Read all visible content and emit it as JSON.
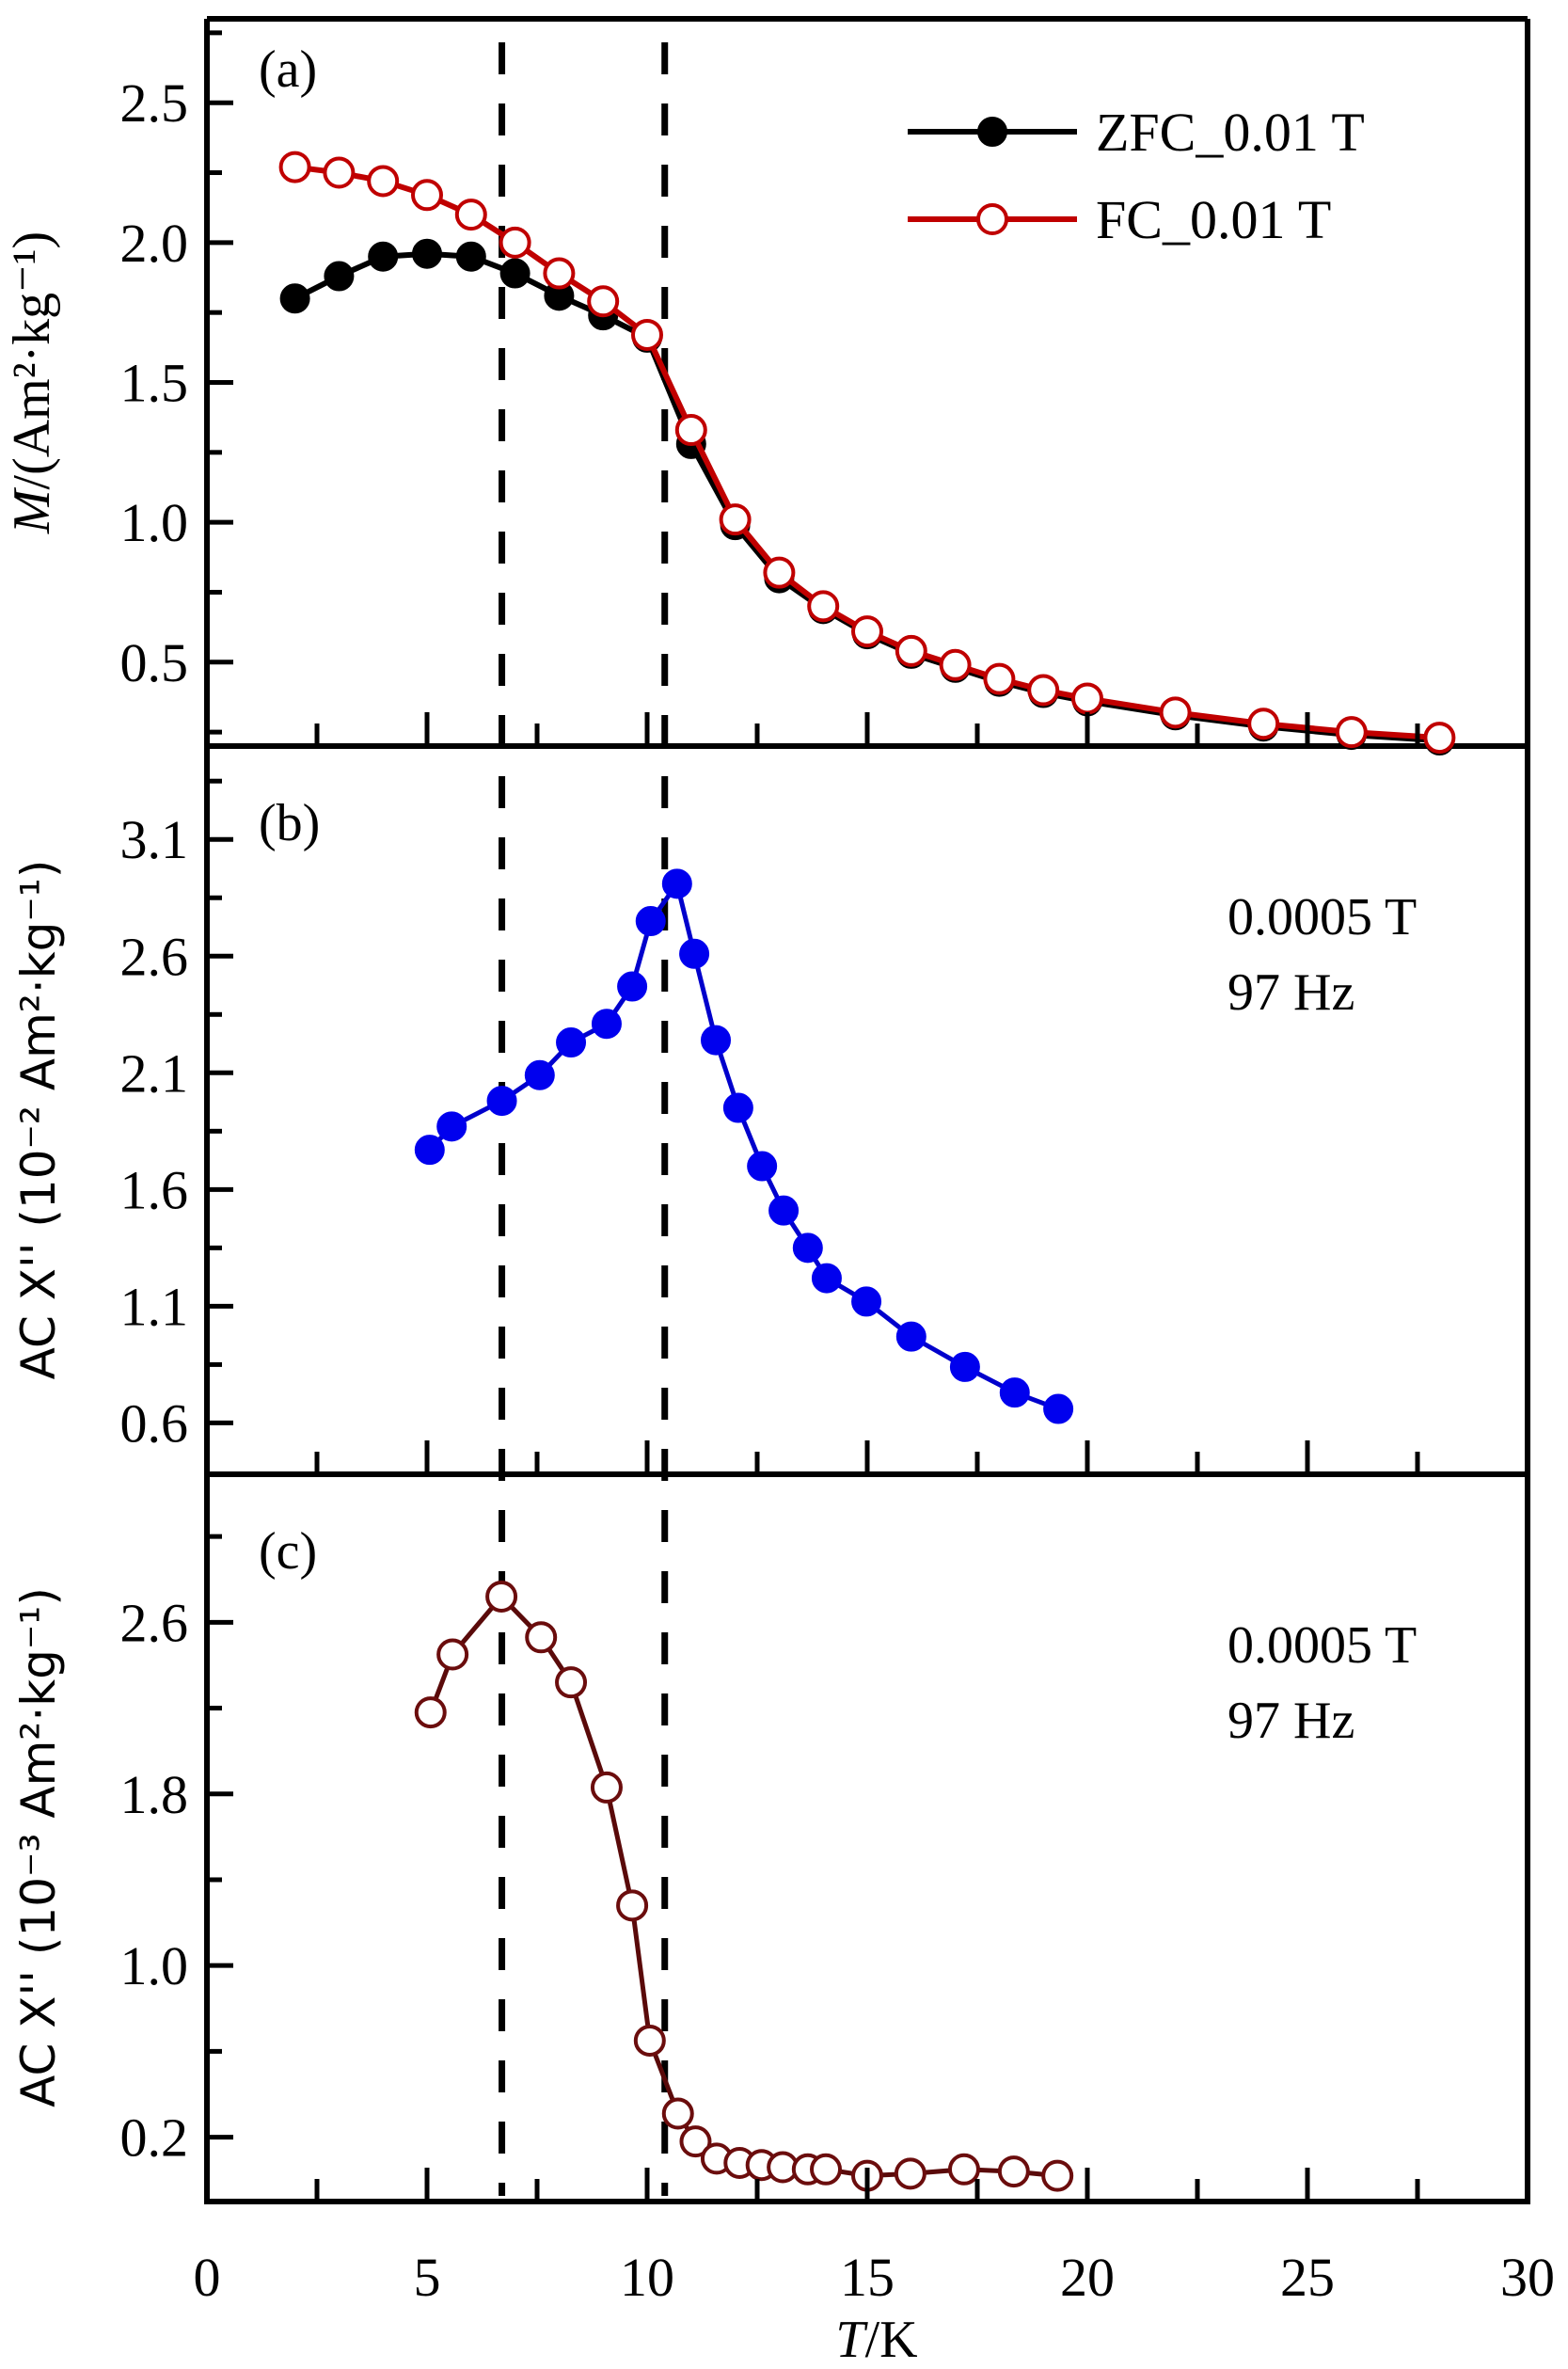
{
  "chart_data": {
    "type": "line",
    "shared_x": {
      "label_italic": "T",
      "label_rest": "/K",
      "range": [
        0,
        30
      ],
      "ticks": [
        0,
        5,
        10,
        15,
        20,
        25,
        30
      ],
      "tick_labels": [
        "0",
        "5",
        "10",
        "15",
        "20",
        "25",
        "30"
      ],
      "minor_step": 2.5
    },
    "reference_lines": {
      "style": "dashed",
      "color": "#000000",
      "x": [
        6.7,
        10.4
      ]
    },
    "panels": [
      {
        "id": "a",
        "panel_label": "(a)",
        "ylabel_italic": "M",
        "ylabel_rest": "/(Am²·kg⁻¹)",
        "ylim": [
          0.2,
          2.8
        ],
        "yticks": [
          0.5,
          1.0,
          1.5,
          2.0,
          2.5
        ],
        "ytick_labels": [
          "0.5",
          "1.0",
          "1.5",
          "2.0",
          "2.5"
        ],
        "minor_step": 0.25,
        "legend": {
          "placement": "top-right"
        },
        "series": [
          {
            "name": "ZFC_0.01 T",
            "marker": "filled-circle",
            "line_color": "#000000",
            "marker_fill": "#000000",
            "marker_stroke": "#000000",
            "x": [
              2,
              3,
              4,
              5,
              6,
              7,
              8,
              9,
              10,
              11,
              12,
              13,
              14,
              15,
              16,
              17,
              18,
              19,
              20,
              22,
              24,
              26,
              28
            ],
            "y": [
              1.8,
              1.88,
              1.95,
              1.96,
              1.95,
              1.89,
              1.81,
              1.74,
              1.66,
              1.28,
              0.99,
              0.8,
              0.69,
              0.6,
              0.53,
              0.48,
              0.43,
              0.39,
              0.36,
              0.31,
              0.27,
              0.24,
              0.22
            ]
          },
          {
            "name": "FC_0.01 T",
            "marker": "open-circle",
            "line_color": "#c00000",
            "marker_fill": "#ffffff",
            "marker_stroke": "#c00000",
            "x": [
              2,
              3,
              4,
              5,
              6,
              7,
              8,
              9,
              10,
              11,
              12,
              13,
              14,
              15,
              16,
              17,
              18,
              19,
              20,
              22,
              24,
              26,
              28
            ],
            "y": [
              2.27,
              2.25,
              2.22,
              2.17,
              2.1,
              2.0,
              1.89,
              1.79,
              1.67,
              1.33,
              1.01,
              0.82,
              0.7,
              0.61,
              0.54,
              0.49,
              0.44,
              0.4,
              0.37,
              0.32,
              0.28,
              0.25,
              0.23
            ]
          }
        ]
      },
      {
        "id": "b",
        "panel_label": "(b)",
        "ylabel": "AC X'' (10⁻² Am²·kg⁻¹)",
        "ylim": [
          0.38,
          3.5
        ],
        "yticks": [
          0.6,
          1.1,
          1.6,
          2.1,
          2.6,
          3.1
        ],
        "ytick_labels": [
          "0.6",
          "1.1",
          "1.6",
          "2.1",
          "2.6",
          "3.1"
        ],
        "minor_step": 0.25,
        "annotation": [
          "0.0005 T",
          "97 Hz"
        ],
        "series": [
          {
            "name": "AC X'' 0.0005 T 97 Hz",
            "marker": "filled-circle",
            "line_color": "#0000cc",
            "marker_fill": "#0000ee",
            "marker_stroke": "#0000ee",
            "x": [
              5.06,
              5.56,
              6.7,
              7.56,
              8.27,
              9.08,
              9.66,
              10.08,
              10.68,
              11.07,
              11.56,
              12.07,
              12.61,
              13.1,
              13.65,
              14.08,
              14.98,
              16.0,
              17.22,
              18.35,
              19.34
            ],
            "y": [
              1.77,
              1.87,
              1.98,
              2.09,
              2.23,
              2.31,
              2.47,
              2.75,
              2.91,
              2.61,
              2.24,
              1.95,
              1.7,
              1.51,
              1.35,
              1.22,
              1.12,
              0.97,
              0.84,
              0.73,
              0.66
            ]
          }
        ]
      },
      {
        "id": "c",
        "panel_label": "(c)",
        "ylabel": "AC X'' (10⁻³ Am²·kg⁻¹)",
        "ylim": [
          -0.1,
          3.29
        ],
        "yticks": [
          0.2,
          1.0,
          1.8,
          2.6
        ],
        "ytick_labels": [
          "0.2",
          "1.0",
          "1.8",
          "2.6"
        ],
        "minor_step": 0.4,
        "annotation": [
          "0.0005 T",
          "97 Hz"
        ],
        "series": [
          {
            "name": "AC X'' 0.0005 T 97 Hz",
            "marker": "open-circle",
            "line_color": "#5a0a0a",
            "marker_fill": "#ffffff",
            "marker_stroke": "#6b0d0d",
            "x": [
              5.08,
              5.58,
              6.69,
              7.59,
              8.27,
              9.08,
              9.66,
              10.06,
              10.7,
              11.1,
              11.58,
              12.1,
              12.6,
              13.08,
              13.65,
              14.06,
              15.0,
              15.98,
              17.2,
              18.33,
              19.32
            ],
            "y": [
              2.18,
              2.45,
              2.72,
              2.53,
              2.32,
              1.83,
              1.28,
              0.65,
              0.31,
              0.18,
              0.1,
              0.08,
              0.07,
              0.06,
              0.05,
              0.05,
              0.02,
              0.03,
              0.05,
              0.04,
              0.02
            ]
          }
        ]
      }
    ]
  }
}
